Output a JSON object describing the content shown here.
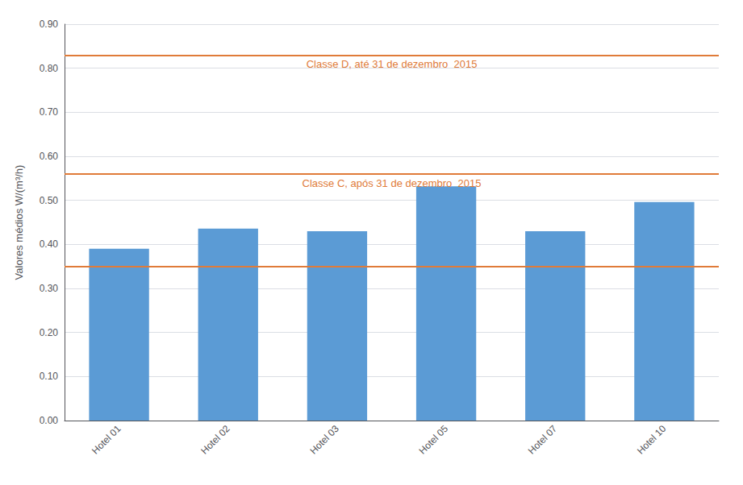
{
  "chart_data": {
    "type": "bar",
    "categories": [
      "Hotel 01",
      "Hotel 02",
      "Hotel 03",
      "Hotel 05",
      "Hotel 07",
      "Hotel 10"
    ],
    "values": [
      0.39,
      0.436,
      0.43,
      0.532,
      0.43,
      0.496
    ],
    "color": "#5B9BD5",
    "ylabel": "Valores médios W/(m³/h)",
    "ylim": [
      0.0,
      0.9
    ],
    "yticks": [
      {
        "value": 0.0,
        "label": "0.00"
      },
      {
        "value": 0.1,
        "label": "0.10"
      },
      {
        "value": 0.2,
        "label": "0.20"
      },
      {
        "value": 0.3,
        "label": "0.30"
      },
      {
        "value": 0.4,
        "label": "0.40"
      },
      {
        "value": 0.5,
        "label": "0.50"
      },
      {
        "value": 0.6,
        "label": "0.60"
      },
      {
        "value": 0.7,
        "label": "0.70"
      },
      {
        "value": 0.8,
        "label": "0.80"
      },
      {
        "value": 0.9,
        "label": "0.90"
      }
    ],
    "grid": true,
    "hlines": [
      {
        "y": 0.35,
        "color": "#E07B39"
      },
      {
        "y": 0.56,
        "color": "#E07B39",
        "label": "Classe C, após 31 de dezembro  2015"
      },
      {
        "y": 0.835,
        "color": "#E07B39",
        "label": "Classe D, até 31 de dezembro  2015"
      }
    ]
  }
}
